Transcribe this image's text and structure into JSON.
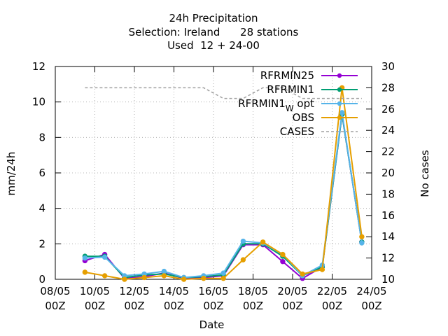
{
  "chart_data": {
    "type": "line",
    "title_lines": [
      "24h Precipitation",
      "Selection: Ireland      28 stations",
      "Used  12 + 24-00"
    ],
    "xlabel": "Date",
    "ylabel": "mm/24h",
    "y2label": "No cases",
    "xlim": [
      0,
      16
    ],
    "ylim": [
      0,
      12
    ],
    "y2lim": [
      10,
      30
    ],
    "x_ticks": [
      {
        "x": 0,
        "line1": "08/05",
        "line2": "00Z"
      },
      {
        "x": 2,
        "line1": "10/05",
        "line2": "00Z"
      },
      {
        "x": 4,
        "line1": "12/05",
        "line2": "00Z"
      },
      {
        "x": 6,
        "line1": "14/05",
        "line2": "00Z"
      },
      {
        "x": 8,
        "line1": "16/05",
        "line2": "00Z"
      },
      {
        "x": 10,
        "line1": "18/05",
        "line2": "00Z"
      },
      {
        "x": 12,
        "line1": "20/05",
        "line2": "00Z"
      },
      {
        "x": 14,
        "line1": "22/05",
        "line2": "00Z"
      },
      {
        "x": 16,
        "line1": "24/05",
        "line2": "00Z"
      }
    ],
    "y_ticks": [
      0,
      2,
      4,
      6,
      8,
      10,
      12
    ],
    "y2_ticks": [
      10,
      12,
      14,
      16,
      18,
      20,
      22,
      24,
      26,
      28,
      30
    ],
    "grid": true,
    "legend_position": "top-right",
    "x": [
      1.5,
      2.5,
      3.5,
      4.5,
      5.5,
      6.5,
      7.5,
      8.5,
      9.5,
      10.5,
      11.5,
      12.5,
      13.5,
      14.5,
      15.5
    ],
    "series": [
      {
        "name": "RFRMIN25",
        "color": "#9400d3",
        "marker": "plus",
        "axis": "y1",
        "values": [
          1.05,
          1.4,
          0.05,
          0.15,
          0.35,
          0.05,
          0.1,
          0.2,
          1.95,
          1.95,
          1.0,
          0.05,
          0.7,
          9.3,
          2.1
        ]
      },
      {
        "name": "RFRMIN1",
        "color": "#009e73",
        "marker": "plus",
        "axis": "y1",
        "values": [
          1.3,
          1.3,
          0.1,
          0.25,
          0.3,
          0.1,
          0.15,
          0.25,
          2.0,
          2.0,
          1.3,
          0.2,
          0.7,
          9.3,
          2.1
        ]
      },
      {
        "name": "RFRMIN1",
        "name_subscript": "W",
        "name_suffix": " opt",
        "color": "#56b4e9",
        "marker": "plus",
        "axis": "y1",
        "values": [
          1.2,
          1.25,
          0.2,
          0.3,
          0.45,
          0.1,
          0.2,
          0.35,
          2.15,
          2.05,
          1.4,
          0.2,
          0.8,
          9.4,
          2.05
        ]
      },
      {
        "name": "OBS",
        "color": "#e69f00",
        "marker": "plus",
        "axis": "y1",
        "values": [
          0.4,
          0.2,
          0.0,
          0.1,
          0.2,
          0.0,
          0.05,
          0.05,
          1.1,
          2.1,
          1.4,
          0.3,
          0.55,
          10.8,
          2.4
        ]
      },
      {
        "name": "CASES",
        "color": "#a0a0a0",
        "marker": "none",
        "dashed": true,
        "axis": "y2",
        "x": [
          1.5,
          2.5,
          3.5,
          4.5,
          5.5,
          6.5,
          7.5,
          8.5,
          9.5,
          10.5,
          11.5,
          12.5,
          13.5,
          14.5,
          15.5
        ],
        "values": [
          28,
          28,
          28,
          28,
          28,
          28,
          28,
          27,
          27,
          28,
          28,
          27,
          27,
          27,
          27
        ]
      }
    ]
  }
}
